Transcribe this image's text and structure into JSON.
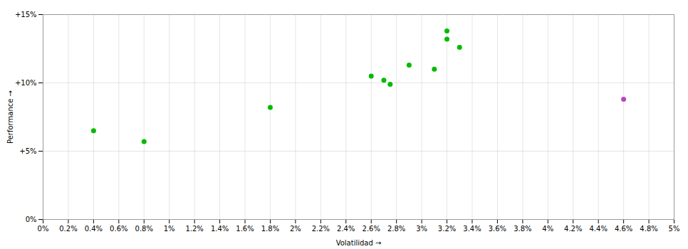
{
  "chart_data": {
    "type": "scatter",
    "xlabel": "Volatilidad",
    "ylabel": "Performance",
    "xlim": [
      0,
      0.05
    ],
    "ylim": [
      0,
      0.15
    ],
    "xticks": [
      {
        "value": 0,
        "label": "0%"
      },
      {
        "value": 0.002,
        "label": "0.2%"
      },
      {
        "value": 0.004,
        "label": "0.4%"
      },
      {
        "value": 0.006,
        "label": "0.6%"
      },
      {
        "value": 0.008,
        "label": "0.8%"
      },
      {
        "value": 0.01,
        "label": "1%"
      },
      {
        "value": 0.012,
        "label": "1.2%"
      },
      {
        "value": 0.014,
        "label": "1.4%"
      },
      {
        "value": 0.016,
        "label": "1.6%"
      },
      {
        "value": 0.018,
        "label": "1.8%"
      },
      {
        "value": 0.02,
        "label": "2%"
      },
      {
        "value": 0.022,
        "label": "2.2%"
      },
      {
        "value": 0.024,
        "label": "2.4%"
      },
      {
        "value": 0.026,
        "label": "2.6%"
      },
      {
        "value": 0.028,
        "label": "2.8%"
      },
      {
        "value": 0.03,
        "label": "3%"
      },
      {
        "value": 0.032,
        "label": "3.2%"
      },
      {
        "value": 0.034,
        "label": "3.4%"
      },
      {
        "value": 0.036,
        "label": "3.6%"
      },
      {
        "value": 0.038,
        "label": "3.8%"
      },
      {
        "value": 0.04,
        "label": "4%"
      },
      {
        "value": 0.042,
        "label": "4.2%"
      },
      {
        "value": 0.044,
        "label": "4.4%"
      },
      {
        "value": 0.046,
        "label": "4.6%"
      },
      {
        "value": 0.048,
        "label": "4.8%"
      },
      {
        "value": 0.05,
        "label": "5%"
      }
    ],
    "yticks": [
      {
        "value": 0,
        "label": "0%"
      },
      {
        "value": 0.05,
        "label": "+5%"
      },
      {
        "value": 0.1,
        "label": "+10%"
      },
      {
        "value": 0.15,
        "label": "+15%"
      }
    ],
    "grid": true,
    "series": [
      {
        "color": "#00bb00",
        "x": [
          0.004,
          0.008,
          0.018,
          0.026,
          0.027,
          0.0275,
          0.029,
          0.031,
          0.032,
          0.032,
          0.033
        ],
        "values": [
          0.065,
          0.057,
          0.082,
          0.105,
          0.102,
          0.099,
          0.113,
          0.11,
          0.138,
          0.132,
          0.126
        ]
      },
      {
        "color": "#bb44bb",
        "x": [
          0.046
        ],
        "values": [
          0.088
        ]
      }
    ]
  }
}
